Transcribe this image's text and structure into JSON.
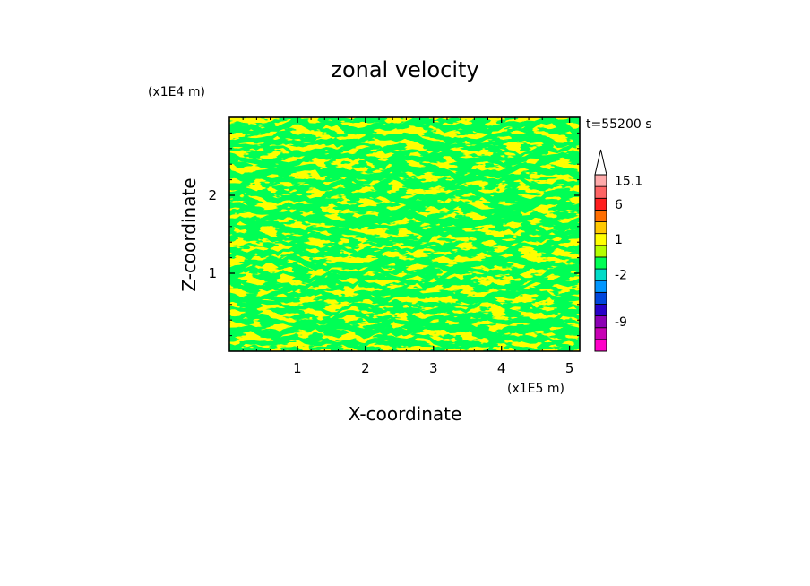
{
  "chart_data": {
    "type": "heatmap",
    "title": "zonal velocity",
    "xlabel": "X-coordinate",
    "ylabel": "Z-coordinate",
    "x_scale_label": "(x1E5 m)",
    "y_scale_label": "(x1E4 m)",
    "time_label": "t=55200 s",
    "xlim": [
      0,
      5.15
    ],
    "ylim": [
      0,
      3.0
    ],
    "x_ticks": [
      "1",
      "2",
      "3",
      "4",
      "5"
    ],
    "x_tick_values": [
      1,
      2,
      3,
      4,
      5
    ],
    "y_ticks": [
      "1",
      "2"
    ],
    "y_tick_values": [
      1,
      2
    ],
    "dominant_fields": [
      {
        "name": "yellow",
        "color": "#ffff00",
        "range": [
          1,
          6
        ]
      },
      {
        "name": "green",
        "color": "#00ff55",
        "range": [
          -2,
          1
        ]
      }
    ],
    "colorbar": {
      "levels": [
        {
          "color": "#ff00c8"
        },
        {
          "color": "#c800b4"
        },
        {
          "color": "#8c00b4"
        },
        {
          "color": "#2800c8"
        },
        {
          "color": "#0046dc"
        },
        {
          "color": "#0096ff"
        },
        {
          "color": "#00dcc8"
        },
        {
          "color": "#00ff55"
        },
        {
          "color": "#b4ff00"
        },
        {
          "color": "#ffff00"
        },
        {
          "color": "#ffc800"
        },
        {
          "color": "#ff6e00"
        },
        {
          "color": "#ff1e1e"
        },
        {
          "color": "#ff6464"
        },
        {
          "color": "#ffaaaa"
        }
      ],
      "labels": [
        {
          "text": "15.1",
          "level": 14
        },
        {
          "text": "6",
          "level": 12
        },
        {
          "text": "1",
          "level": 9
        },
        {
          "text": "-2",
          "level": 6
        },
        {
          "text": "-9",
          "level": 2
        }
      ],
      "extend_max": true,
      "extend_color": "#ffffff"
    }
  }
}
